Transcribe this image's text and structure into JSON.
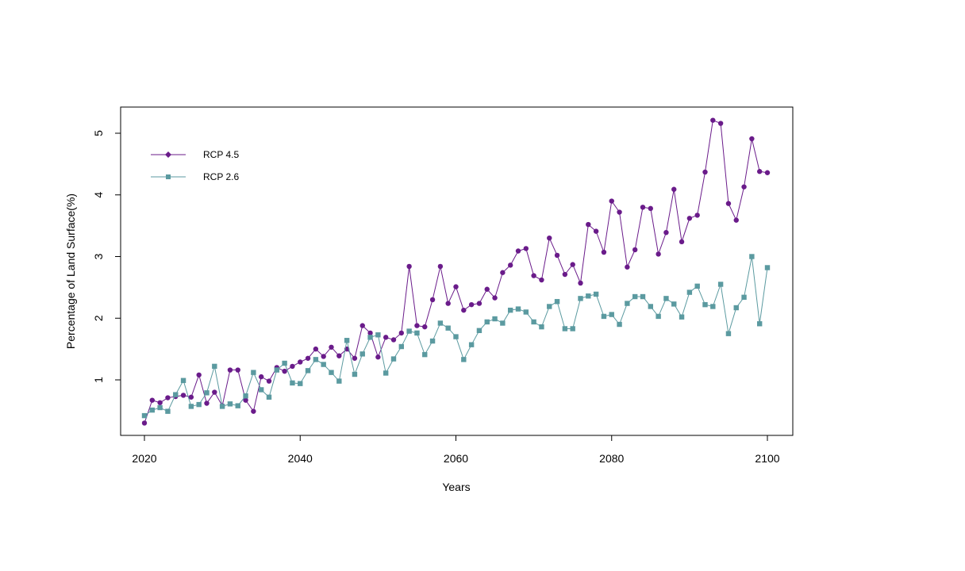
{
  "chart_data": {
    "type": "line",
    "title": "",
    "xlabel": "Years",
    "ylabel": "Percentage of Land Surface(%)",
    "xlim": [
      2020,
      2100
    ],
    "ylim": [
      0.22,
      5.35
    ],
    "x_ticks": [
      2020,
      2040,
      2060,
      2080,
      2100
    ],
    "y_ticks": [
      1,
      2,
      3,
      4,
      5
    ],
    "grid": false,
    "legend_position": "top-left",
    "x": [
      2020,
      2021,
      2022,
      2023,
      2024,
      2025,
      2026,
      2027,
      2028,
      2029,
      2030,
      2031,
      2032,
      2033,
      2034,
      2035,
      2036,
      2037,
      2038,
      2039,
      2040,
      2041,
      2042,
      2043,
      2044,
      2045,
      2046,
      2047,
      2048,
      2049,
      2050,
      2051,
      2052,
      2053,
      2054,
      2055,
      2056,
      2057,
      2058,
      2059,
      2060,
      2061,
      2062,
      2063,
      2064,
      2065,
      2066,
      2067,
      2068,
      2069,
      2070,
      2071,
      2072,
      2073,
      2074,
      2075,
      2076,
      2077,
      2078,
      2079,
      2080,
      2081,
      2082,
      2083,
      2084,
      2085,
      2086,
      2087,
      2088,
      2089,
      2090,
      2091,
      2092,
      2093,
      2094,
      2095,
      2096,
      2097,
      2098,
      2099,
      2100
    ],
    "series": [
      {
        "name": "RCP 4.5",
        "color": "#6a1b8a",
        "marker": "diamond",
        "values": [
          0.3,
          0.67,
          0.63,
          0.71,
          0.73,
          0.75,
          0.72,
          1.08,
          0.62,
          0.8,
          0.58,
          1.16,
          1.16,
          0.67,
          0.49,
          1.05,
          0.98,
          1.2,
          1.14,
          1.22,
          1.29,
          1.35,
          1.5,
          1.38,
          1.53,
          1.39,
          1.5,
          1.35,
          1.88,
          1.76,
          1.37,
          1.69,
          1.65,
          1.76,
          2.84,
          1.88,
          1.86,
          2.3,
          2.84,
          2.24,
          2.51,
          2.13,
          2.22,
          2.24,
          2.47,
          2.33,
          2.74,
          2.86,
          3.09,
          3.13,
          2.69,
          2.62,
          3.3,
          3.02,
          2.71,
          2.87,
          2.57,
          3.52,
          3.41,
          3.07,
          3.9,
          3.72,
          2.83,
          3.11,
          3.8,
          3.78,
          3.04,
          3.39,
          4.09,
          3.24,
          3.62,
          3.67,
          4.37,
          5.21,
          5.16,
          3.86,
          3.59,
          4.13,
          4.91,
          4.38,
          4.36
        ]
      },
      {
        "name": "RCP 2.6",
        "color": "#5b9aa0",
        "marker": "square",
        "values": [
          0.42,
          0.51,
          0.55,
          0.49,
          0.76,
          0.99,
          0.57,
          0.6,
          0.79,
          1.22,
          0.57,
          0.61,
          0.58,
          0.74,
          1.12,
          0.84,
          0.72,
          1.16,
          1.27,
          0.95,
          0.94,
          1.15,
          1.33,
          1.25,
          1.12,
          0.98,
          1.64,
          1.09,
          1.42,
          1.69,
          1.73,
          1.11,
          1.34,
          1.54,
          1.79,
          1.76,
          1.41,
          1.63,
          1.92,
          1.84,
          1.7,
          1.33,
          1.57,
          1.8,
          1.94,
          1.99,
          1.92,
          2.13,
          2.15,
          2.1,
          1.94,
          1.86,
          2.19,
          2.27,
          1.83,
          1.83,
          2.32,
          2.36,
          2.39,
          2.03,
          2.06,
          1.9,
          2.24,
          2.35,
          2.35,
          2.19,
          2.03,
          2.32,
          2.23,
          2.02,
          2.42,
          2.52,
          2.22,
          2.19,
          2.55,
          1.75,
          2.17,
          2.34,
          3.0,
          1.91,
          2.82
        ]
      }
    ]
  }
}
